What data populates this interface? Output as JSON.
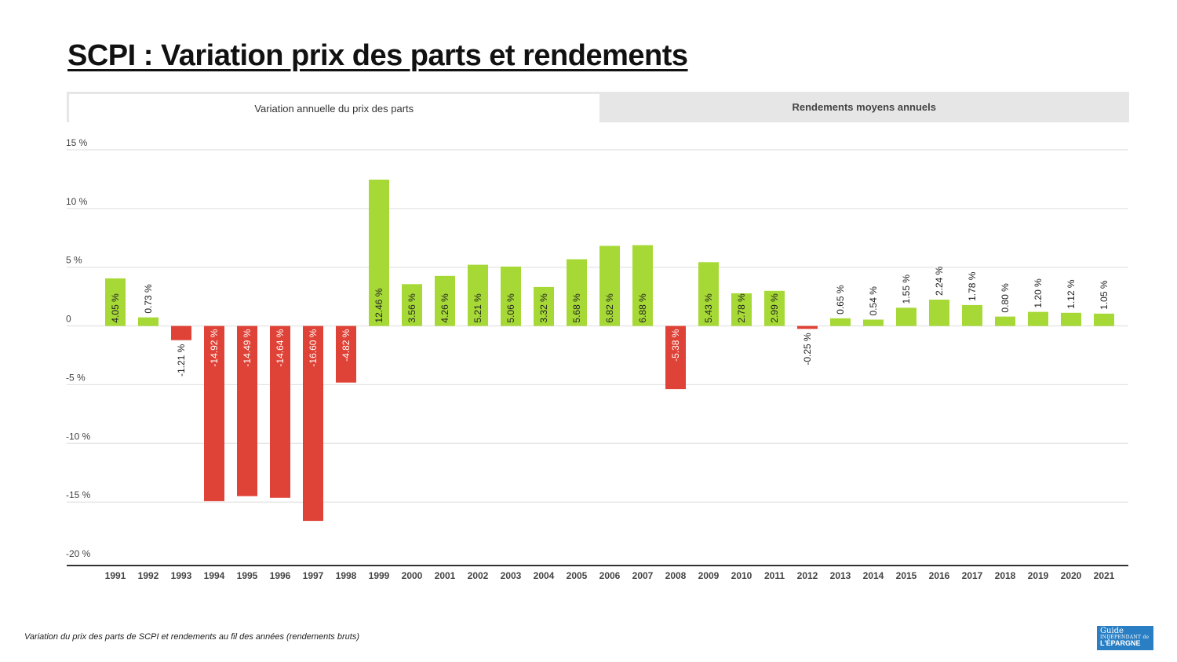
{
  "page": {
    "title": "SCPI : Variation prix des parts et rendements",
    "caption": "Variation du prix des parts de SCPI et rendements au fil des années (rendements bruts)"
  },
  "tabs": [
    {
      "label": "Variation annuelle du prix des parts",
      "active": true
    },
    {
      "label": "Rendements moyens annuels",
      "active": false
    }
  ],
  "logo": {
    "line1": "Guide",
    "line2": "INDÉPENDANT de",
    "line3": "L'ÉPARGNE"
  },
  "colors": {
    "positive": "#a6d936",
    "negative": "#df4236",
    "grid": "#dddddd",
    "axis": "#333333"
  },
  "chart_data": {
    "type": "bar",
    "title": "Variation annuelle du prix des parts",
    "xlabel": "",
    "ylabel": "",
    "ylim": [
      -20,
      15
    ],
    "yticks": [
      15,
      10,
      5,
      0,
      -5,
      -10,
      -15,
      -20
    ],
    "ytick_labels": [
      "15 %",
      "10 %",
      "5 %",
      "0",
      "-5 %",
      "-10 %",
      "-15 %",
      "-20 %"
    ],
    "grid": true,
    "categories": [
      "1991",
      "1992",
      "1993",
      "1994",
      "1995",
      "1996",
      "1997",
      "1998",
      "1999",
      "2000",
      "2001",
      "2002",
      "2003",
      "2004",
      "2005",
      "2006",
      "2007",
      "2008",
      "2009",
      "2010",
      "2011",
      "2012",
      "2013",
      "2014",
      "2015",
      "2016",
      "2017",
      "2018",
      "2019",
      "2020",
      "2021"
    ],
    "values": [
      4.05,
      0.73,
      -1.21,
      -14.92,
      -14.49,
      -14.64,
      -16.6,
      -4.82,
      12.46,
      3.56,
      4.26,
      5.21,
      5.06,
      3.32,
      5.68,
      6.82,
      6.88,
      -5.38,
      5.43,
      2.78,
      2.99,
      -0.25,
      0.65,
      0.54,
      1.55,
      2.24,
      1.78,
      0.8,
      1.2,
      1.12,
      1.05
    ],
    "labels": [
      "4.05 %",
      "0.73 %",
      "-1.21 %",
      "-14.92 %",
      "-14.49 %",
      "-14.64 %",
      "-16.60 %",
      "-4.82 %",
      "12.46 %",
      "3.56 %",
      "4.26 %",
      "5.21 %",
      "5.06 %",
      "3.32 %",
      "5.68 %",
      "6.82 %",
      "6.88 %",
      "-5.38 %",
      "5.43 %",
      "2.78 %",
      "2.99 %",
      "-0.25 %",
      "0.65 %",
      "0.54 %",
      "1.55 %",
      "2.24 %",
      "1.78 %",
      "0.80 %",
      "1.20 %",
      "1.12 %",
      "1.05 %"
    ]
  }
}
